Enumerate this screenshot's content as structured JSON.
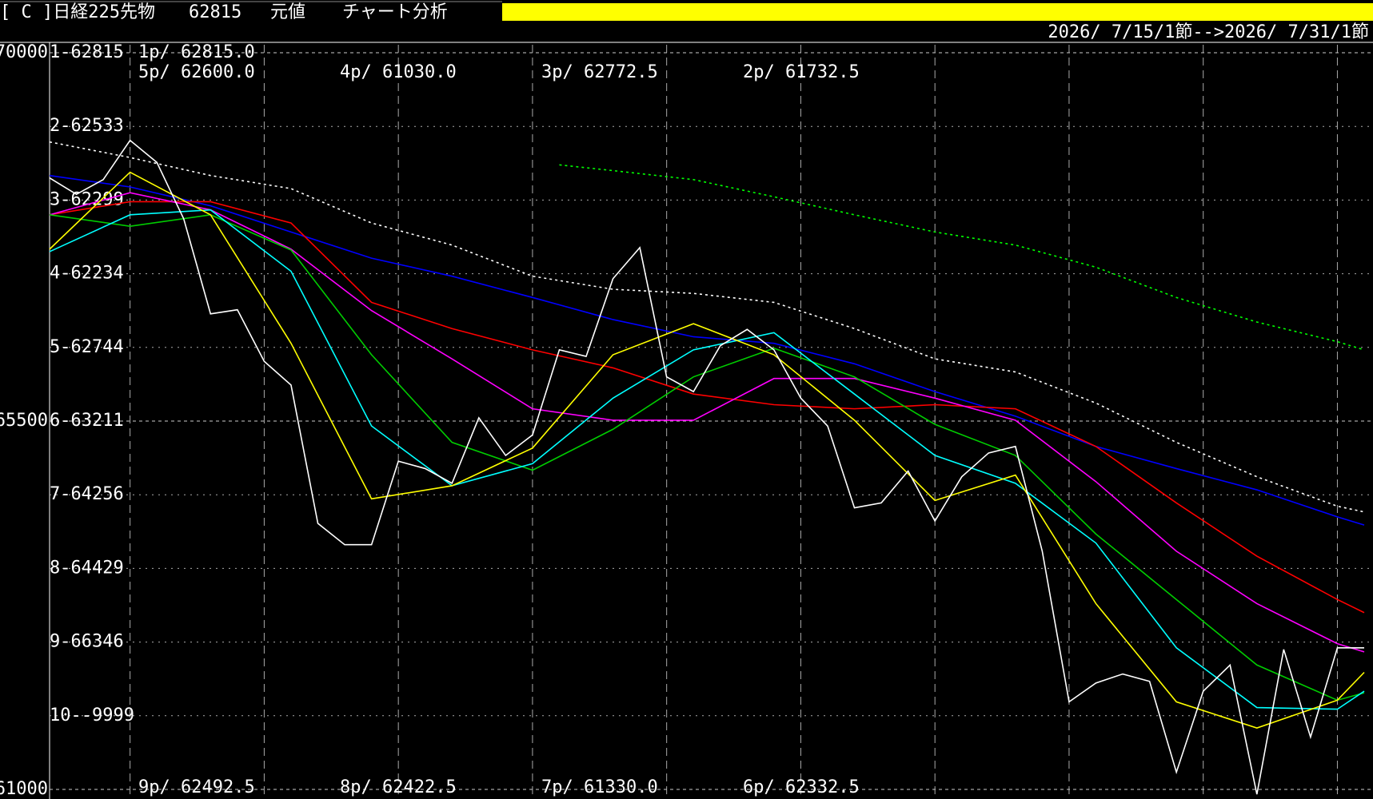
{
  "header": {
    "title": "[ C ]日経225先物",
    "price": "62815",
    "label1": "元値",
    "label2": "チャート分析",
    "date_range": "2026/ 7/15/1節-->2026/ 7/31/1節"
  },
  "chart_data": {
    "type": "line",
    "xlim": [
      0,
      49
    ],
    "ylim": [
      61000,
      70000
    ],
    "yticks": [
      61000,
      65500,
      70000
    ],
    "levels": [
      "1-62815",
      "2-62533",
      "3-62299",
      "4-62234",
      "5-62744",
      "6-63211",
      "7-64256",
      "8-64429",
      "9-66346",
      "10--9999"
    ],
    "top_labels": [
      "1p/ 62815.0",
      "5p/ 62600.0",
      "4p/ 61030.0",
      "3p/ 62772.5",
      "2p/ 61732.5"
    ],
    "bottom_labels": [
      "9p/ 62492.5",
      "8p/ 62422.5",
      "7p/ 61330.0",
      "6p/ 62332.5"
    ],
    "series": [
      {
        "color": "#ffffff",
        "dashed": true,
        "x": [
          0,
          3,
          6,
          9,
          12,
          15,
          18,
          21,
          24,
          27,
          30,
          33,
          36,
          39,
          42,
          45,
          48,
          49
        ],
        "values": [
          68910,
          68720,
          68500,
          68340,
          67920,
          67650,
          67270,
          67110,
          67060,
          66950,
          66630,
          66260,
          66100,
          65720,
          65240,
          64820,
          64460,
          64390
        ]
      },
      {
        "color": "#00ff00",
        "dashed": true,
        "x": [
          19,
          21,
          24,
          27,
          30,
          33,
          36,
          39,
          42,
          45,
          48,
          49
        ],
        "values": [
          68630,
          68560,
          68450,
          68240,
          68020,
          67810,
          67650,
          67380,
          67010,
          66710,
          66470,
          66370
        ]
      },
      {
        "color": "#0000ff",
        "x": [
          0,
          3,
          6,
          9,
          12,
          15,
          18,
          21,
          24,
          27,
          30,
          33,
          36,
          39,
          42,
          45,
          48,
          49
        ],
        "values": [
          68500,
          68360,
          68130,
          67810,
          67490,
          67270,
          67010,
          66740,
          66530,
          66450,
          66200,
          65860,
          65560,
          65190,
          64920,
          64660,
          64330,
          64230
        ]
      },
      {
        "color": "#ff0000",
        "x": [
          0,
          3,
          6,
          9,
          12,
          15,
          18,
          21,
          24,
          27,
          30,
          33,
          36,
          39,
          42,
          45,
          48,
          49
        ],
        "values": [
          68020,
          68180,
          68180,
          67920,
          66950,
          66630,
          66370,
          66150,
          65830,
          65700,
          65650,
          65700,
          65650,
          65190,
          64500,
          63850,
          63320,
          63160
        ]
      },
      {
        "color": "#ff00ff",
        "x": [
          0,
          3,
          6,
          9,
          12,
          15,
          18,
          21,
          24,
          27,
          30,
          33,
          36,
          39,
          42,
          45,
          48,
          49
        ],
        "values": [
          68020,
          68290,
          68080,
          67600,
          66850,
          66260,
          65650,
          65510,
          65510,
          66020,
          66020,
          65780,
          65510,
          64760,
          63910,
          63270,
          62780,
          62680
        ]
      },
      {
        "color": "#00cc00",
        "x": [
          0,
          3,
          6,
          9,
          12,
          15,
          18,
          21,
          24,
          27,
          30,
          33,
          36,
          39,
          42,
          45,
          48,
          49
        ],
        "values": [
          68020,
          67880,
          68020,
          67590,
          66310,
          65240,
          64900,
          65400,
          66040,
          66390,
          66040,
          65460,
          65080,
          64120,
          63320,
          62520,
          62090,
          62180
        ]
      },
      {
        "color": "#00ffff",
        "x": [
          0,
          3,
          6,
          9,
          12,
          15,
          18,
          21,
          24,
          27,
          30,
          33,
          36,
          39,
          42,
          45,
          48,
          49
        ],
        "values": [
          67570,
          68020,
          68080,
          67330,
          65440,
          64710,
          64980,
          65780,
          66370,
          66580,
          65830,
          65080,
          64740,
          64010,
          62730,
          62000,
          61980,
          62200
        ]
      },
      {
        "color": "#ffff00",
        "x": [
          0,
          3,
          6,
          9,
          12,
          15,
          18,
          21,
          24,
          27,
          30,
          33,
          36,
          39,
          42,
          45,
          48,
          49
        ],
        "values": [
          67600,
          68540,
          68020,
          66450,
          64550,
          64710,
          65170,
          66310,
          66690,
          66310,
          65510,
          64530,
          64840,
          63270,
          62070,
          61750,
          62090,
          62430
        ]
      },
      {
        "color": "#ffffff",
        "x": [
          0,
          1,
          2,
          3,
          4,
          5,
          6,
          7,
          8,
          9,
          10,
          11,
          12,
          13,
          14,
          15,
          16,
          17,
          18,
          19,
          20,
          21,
          22,
          23,
          24,
          25,
          26,
          27,
          28,
          29,
          30,
          31,
          32,
          33,
          34,
          35,
          36,
          37,
          38,
          39,
          40,
          41,
          42,
          43,
          44,
          45,
          46,
          47,
          48,
          49
        ],
        "values": [
          68470,
          68270,
          68450,
          68930,
          68660,
          67970,
          66810,
          66860,
          66230,
          65940,
          64250,
          63990,
          63990,
          65010,
          64920,
          64740,
          65540,
          65080,
          65330,
          66370,
          66290,
          67240,
          67620,
          66040,
          65860,
          66420,
          66620,
          66370,
          65780,
          65440,
          64440,
          64500,
          64890,
          64280,
          64820,
          65110,
          65190,
          63910,
          62070,
          62300,
          62410,
          62320,
          61210,
          62200,
          62520,
          60940,
          62710,
          61640,
          62730,
          62730
        ]
      }
    ]
  }
}
